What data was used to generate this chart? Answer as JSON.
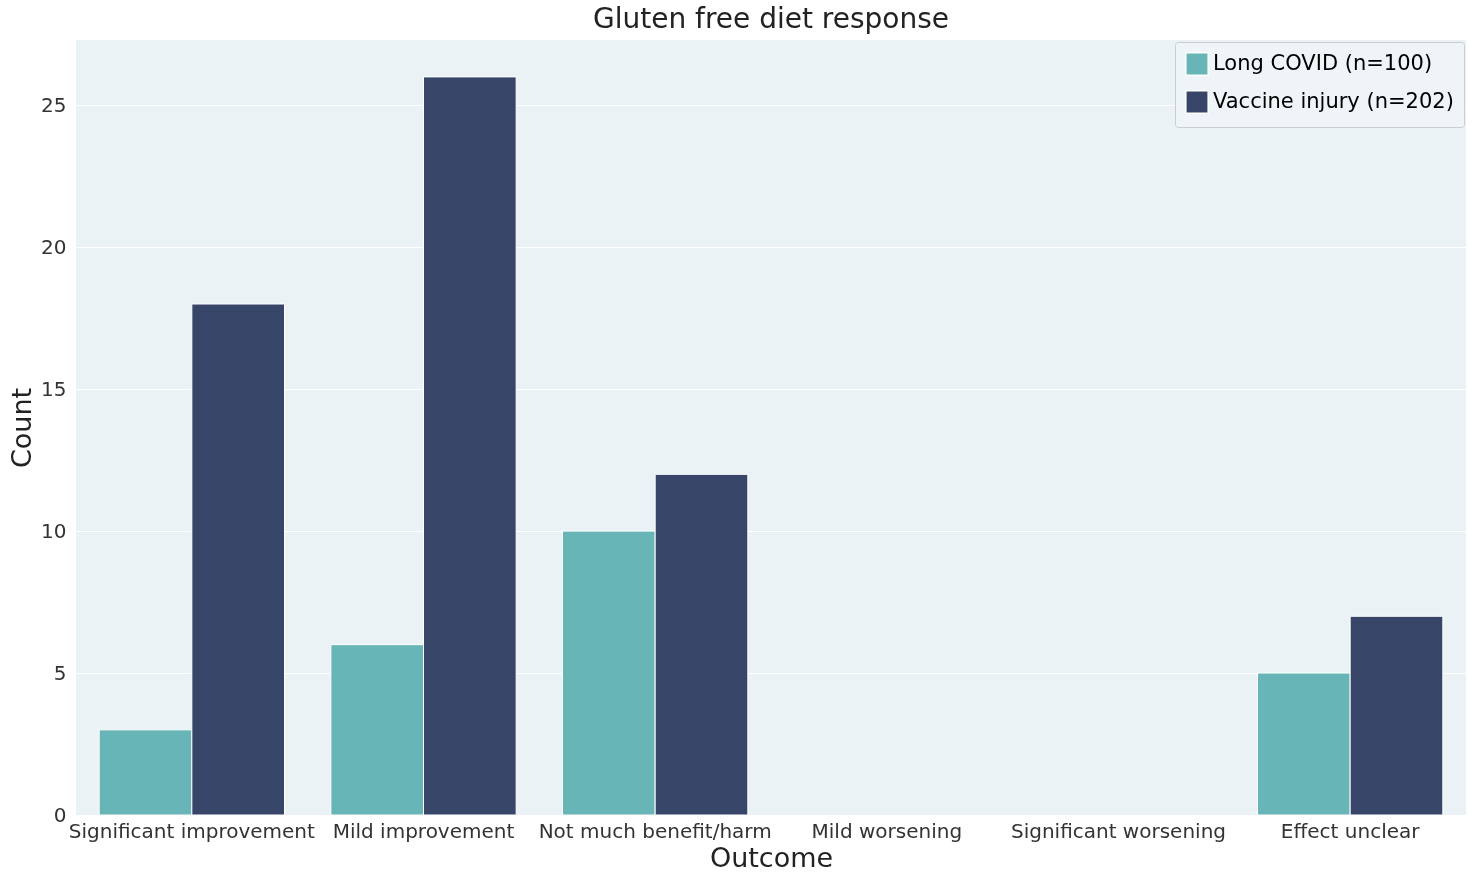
{
  "chart_data": {
    "type": "bar",
    "title": "Gluten free diet response",
    "xlabel": "Outcome",
    "ylabel": "Count",
    "categories": [
      "Significant improvement",
      "Mild improvement",
      "Not much benefit/harm",
      "Mild worsening",
      "Significant worsening",
      "Effect unclear"
    ],
    "series": [
      {
        "name": "Long COVID (n=100)",
        "color": "#67b5b6",
        "values": [
          3,
          6,
          10,
          0,
          0,
          5
        ]
      },
      {
        "name": "Vaccine injury (n=202)",
        "color": "#374668",
        "values": [
          18,
          26,
          12,
          0,
          0,
          7
        ]
      }
    ],
    "ylim": [
      0,
      27.3
    ],
    "yticks": [
      0,
      5,
      10,
      15,
      20,
      25
    ],
    "grid": "y",
    "legend": "top right"
  }
}
